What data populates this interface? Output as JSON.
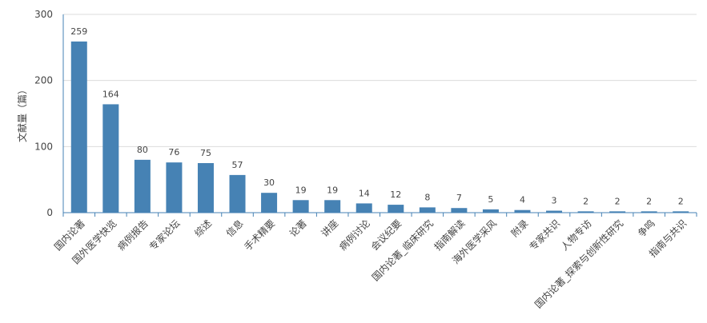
{
  "chart_data": {
    "type": "bar",
    "ylabel": "文献量（篇）",
    "ylim": [
      0,
      300
    ],
    "yticks": [
      0,
      100,
      200,
      300
    ],
    "grid": true,
    "bar_color": "#4682b4",
    "categories": [
      "国内论著",
      "国外医学快览",
      "病例报告",
      "专家论坛",
      "综述",
      "信息",
      "手术精要",
      "论著",
      "讲座",
      "病例讨论",
      "会议纪要",
      "国内论著_临床研究",
      "指南解读",
      "海外医学采风",
      "附录",
      "专家共识",
      "人物专访",
      "国内论著_探索与创新性研究",
      "争鸣",
      "指南与共识"
    ],
    "values": [
      259,
      164,
      80,
      76,
      75,
      57,
      30,
      19,
      19,
      14,
      12,
      8,
      7,
      5,
      4,
      3,
      2,
      2,
      2,
      2
    ]
  }
}
